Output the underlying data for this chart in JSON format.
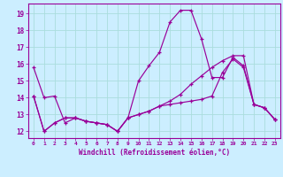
{
  "xlabel": "Windchill (Refroidissement éolien,°C)",
  "bg_color": "#cceeff",
  "grid_color": "#aadddd",
  "line_color": "#990099",
  "xlim": [
    -0.5,
    23.5
  ],
  "ylim": [
    11.6,
    19.6
  ],
  "xticks": [
    0,
    1,
    2,
    3,
    4,
    5,
    6,
    7,
    8,
    9,
    10,
    11,
    12,
    13,
    14,
    15,
    16,
    17,
    18,
    19,
    20,
    21,
    22,
    23
  ],
  "yticks": [
    12,
    13,
    14,
    15,
    16,
    17,
    18,
    19
  ],
  "series": [
    [
      15.8,
      14.0,
      14.1,
      12.5,
      12.8,
      12.6,
      12.5,
      12.4,
      12.0,
      12.8,
      15.0,
      15.9,
      16.7,
      18.5,
      19.2,
      19.2,
      17.5,
      15.2,
      15.2,
      16.4,
      15.9,
      13.6,
      13.4,
      12.7
    ],
    [
      14.1,
      12.0,
      12.5,
      12.8,
      12.8,
      12.6,
      12.5,
      12.4,
      12.0,
      12.8,
      13.0,
      13.2,
      13.5,
      13.6,
      13.7,
      13.8,
      13.9,
      14.1,
      15.5,
      16.3,
      15.8,
      13.6,
      13.4,
      12.7
    ],
    [
      14.1,
      12.0,
      12.5,
      12.8,
      12.8,
      12.6,
      12.5,
      12.4,
      12.0,
      12.8,
      13.0,
      13.2,
      13.5,
      13.8,
      14.2,
      14.8,
      15.3,
      15.8,
      16.2,
      16.5,
      16.5,
      13.6,
      13.4,
      12.7
    ]
  ]
}
